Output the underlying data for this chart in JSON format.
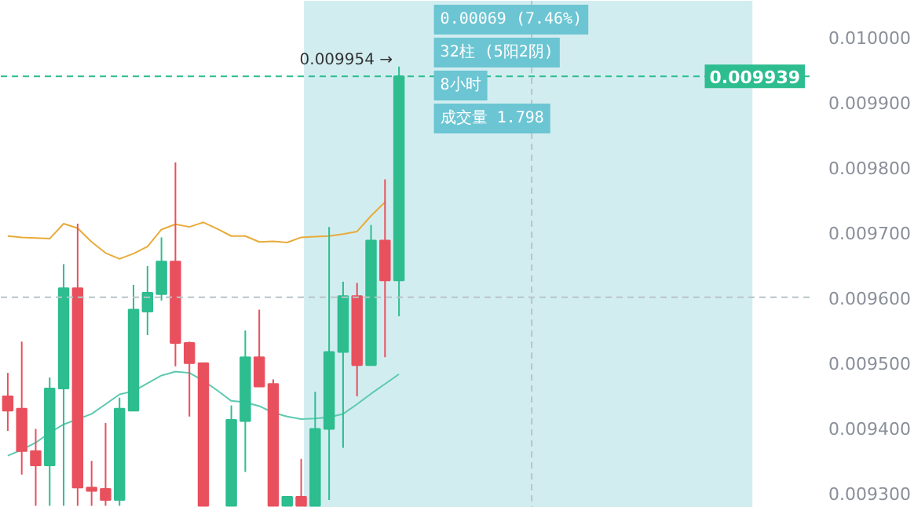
{
  "chart_data": {
    "type": "candlestick",
    "categories": [
      null,
      null,
      null,
      null,
      null,
      null,
      null,
      null,
      null,
      null,
      null,
      null,
      null,
      null,
      null,
      null,
      null,
      null,
      null,
      null,
      null,
      null,
      null,
      null,
      null,
      null,
      null,
      null,
      null,
      null,
      null,
      null,
      null,
      null,
      null,
      null,
      null,
      null,
      null,
      null,
      null,
      null,
      null,
      null,
      null,
      null,
      null,
      null,
      null,
      null,
      null,
      null,
      null,
      null,
      null,
      null,
      null,
      null
    ],
    "ohlc": [
      [
        0.009448,
        0.009484,
        0.009395,
        0.009426
      ],
      [
        0.009429,
        0.009532,
        0.009328,
        0.009364
      ],
      [
        0.009364,
        0.009398,
        0.00928,
        0.009342
      ],
      [
        0.009342,
        0.009477,
        0.00928,
        0.00946
      ],
      [
        0.00946,
        0.009651,
        0.00928,
        0.009614
      ],
      [
        0.009614,
        0.009713,
        0.00928,
        0.009308
      ],
      [
        0.009308,
        0.009349,
        0.00928,
        0.009303
      ],
      [
        0.009306,
        0.009407,
        0.00928,
        0.009289
      ],
      [
        0.009289,
        0.009446,
        0.00928,
        0.009429
      ],
      [
        0.009426,
        0.009619,
        0.009426,
        0.009581
      ],
      [
        0.009578,
        0.009648,
        0.009542,
        0.009607
      ],
      [
        0.009605,
        0.009692,
        0.009595,
        0.009655
      ],
      [
        0.009655,
        0.009807,
        0.009494,
        0.00953
      ],
      [
        0.00953,
        0.009532,
        0.009417,
        0.009499
      ],
      [
        0.009499,
        0.009499,
        0.00928,
        0.00928
      ],
      null,
      [
        0.00928,
        0.009434,
        0.00928,
        0.009412
      ],
      [
        0.00941,
        0.009549,
        0.009332,
        0.009508
      ],
      [
        0.009508,
        0.009581,
        0.009463,
        0.009463
      ],
      [
        0.009467,
        0.009474,
        0.00928,
        0.00928
      ],
      [
        0.00928,
        0.009294,
        0.00928,
        0.009294
      ],
      [
        0.009294,
        0.009352,
        0.00928,
        0.00928
      ],
      [
        0.00928,
        0.009455,
        0.00928,
        0.009398
      ],
      [
        0.009398,
        0.009708,
        0.009289,
        0.009516
      ],
      [
        0.009516,
        0.009624,
        0.009369,
        0.009602
      ],
      [
        0.009602,
        0.009622,
        0.009448,
        0.009496
      ],
      [
        0.009496,
        0.009711,
        0.009496,
        0.009687
      ],
      [
        0.009687,
        0.009781,
        0.009508,
        0.009626
      ],
      [
        0.009626,
        0.009954,
        0.009571,
        0.009939
      ],
      null,
      null,
      null,
      null,
      null,
      null,
      null,
      null,
      null,
      null,
      null,
      null,
      null,
      null,
      null,
      null,
      null,
      null,
      null,
      null,
      null,
      null,
      null,
      null,
      null,
      null,
      null,
      null,
      null
    ],
    "colors": [
      "#e9505d",
      "#e9505d",
      "#e9505d",
      "#2dbd8f",
      "#2dbd8f",
      "#e9505d",
      "#e9505d",
      "#e9505d",
      "#2dbd8f",
      "#2dbd8f",
      "#2dbd8f",
      "#2dbd8f",
      "#e9505d",
      "#e9505d",
      "#e9505d",
      null,
      "#2dbd8f",
      "#2dbd8f",
      "#e9505d",
      "#e9505d",
      "#2dbd8f",
      "#e9505d",
      "#2dbd8f",
      "#2dbd8f",
      "#2dbd8f",
      "#e9505d",
      "#2dbd8f",
      "#e9505d",
      "#2dbd8f",
      null,
      null,
      null,
      null,
      null,
      null,
      null,
      null,
      null,
      null,
      null,
      null,
      null,
      null,
      null,
      null,
      null,
      null,
      null,
      null,
      null,
      null,
      null,
      null,
      null,
      null,
      null,
      null,
      null
    ],
    "series": [
      {
        "type": "line",
        "color": "#e8ab3a",
        "values": [
          0.009694,
          0.009692,
          0.009691,
          0.00969,
          0.009713,
          0.009706,
          0.009685,
          0.009668,
          0.009659,
          0.009667,
          0.009678,
          0.009704,
          0.009712,
          0.009708,
          0.009715,
          0.009705,
          0.009694,
          0.009694,
          0.009685,
          0.009686,
          0.009684,
          0.009692,
          0.009693,
          0.009694,
          0.009697,
          0.009701,
          0.009725,
          0.009746,
          null,
          null,
          null,
          null,
          null,
          null,
          null,
          null,
          null,
          null,
          null,
          null,
          null,
          null,
          null,
          null,
          null,
          null,
          null,
          null,
          null,
          null,
          null,
          null,
          null,
          null,
          null,
          null,
          null,
          null
        ]
      },
      {
        "type": "line",
        "color": "#5cc9b0",
        "values": [
          0.009357,
          0.009366,
          0.009377,
          0.009392,
          0.009405,
          0.009413,
          0.009421,
          0.009436,
          0.009451,
          0.009456,
          0.009468,
          0.00948,
          0.009486,
          0.009484,
          0.009472,
          0.009457,
          0.009441,
          0.009439,
          0.009433,
          0.009423,
          0.009417,
          0.009413,
          0.009414,
          0.009416,
          0.009421,
          0.009436,
          0.009452,
          0.009467,
          0.009482,
          null,
          null,
          null,
          null,
          null,
          null,
          null,
          null,
          null,
          null,
          null,
          null,
          null,
          null,
          null,
          null,
          null,
          null,
          null,
          null,
          null,
          null,
          null,
          null,
          null,
          null,
          null,
          null,
          null
        ]
      }
    ],
    "ylim": [
      0.009277,
      0.010055
    ],
    "yticks": [
      {
        "value": 0.0093,
        "label": "0.009300"
      },
      {
        "value": 0.0094,
        "label": "0.009400"
      },
      {
        "value": 0.0095,
        "label": "0.009500"
      },
      {
        "value": 0.0096,
        "label": "0.009600"
      },
      {
        "value": 0.0097,
        "label": "0.009700"
      },
      {
        "value": 0.0098,
        "label": "0.009800"
      },
      {
        "value": 0.0099,
        "label": "0.009900"
      },
      {
        "value": 0.01,
        "label": "0.010000"
      }
    ],
    "tick_labels": "y",
    "grid": false,
    "ref_lines": [
      {
        "axis": "y",
        "value": 0.009939,
        "label": "0.009939",
        "color": "#2dbd8f",
        "line_style": "dashed"
      },
      {
        "axis": "y",
        "value": 0.0096,
        "color": "#b8c4c8",
        "line_style": "dashed"
      }
    ],
    "annotations": [
      "0.009954 →",
      "0.00069 (7.46%)",
      "32柱 (5阳2阴)",
      "8小时",
      "成交量 1.798"
    ]
  }
}
